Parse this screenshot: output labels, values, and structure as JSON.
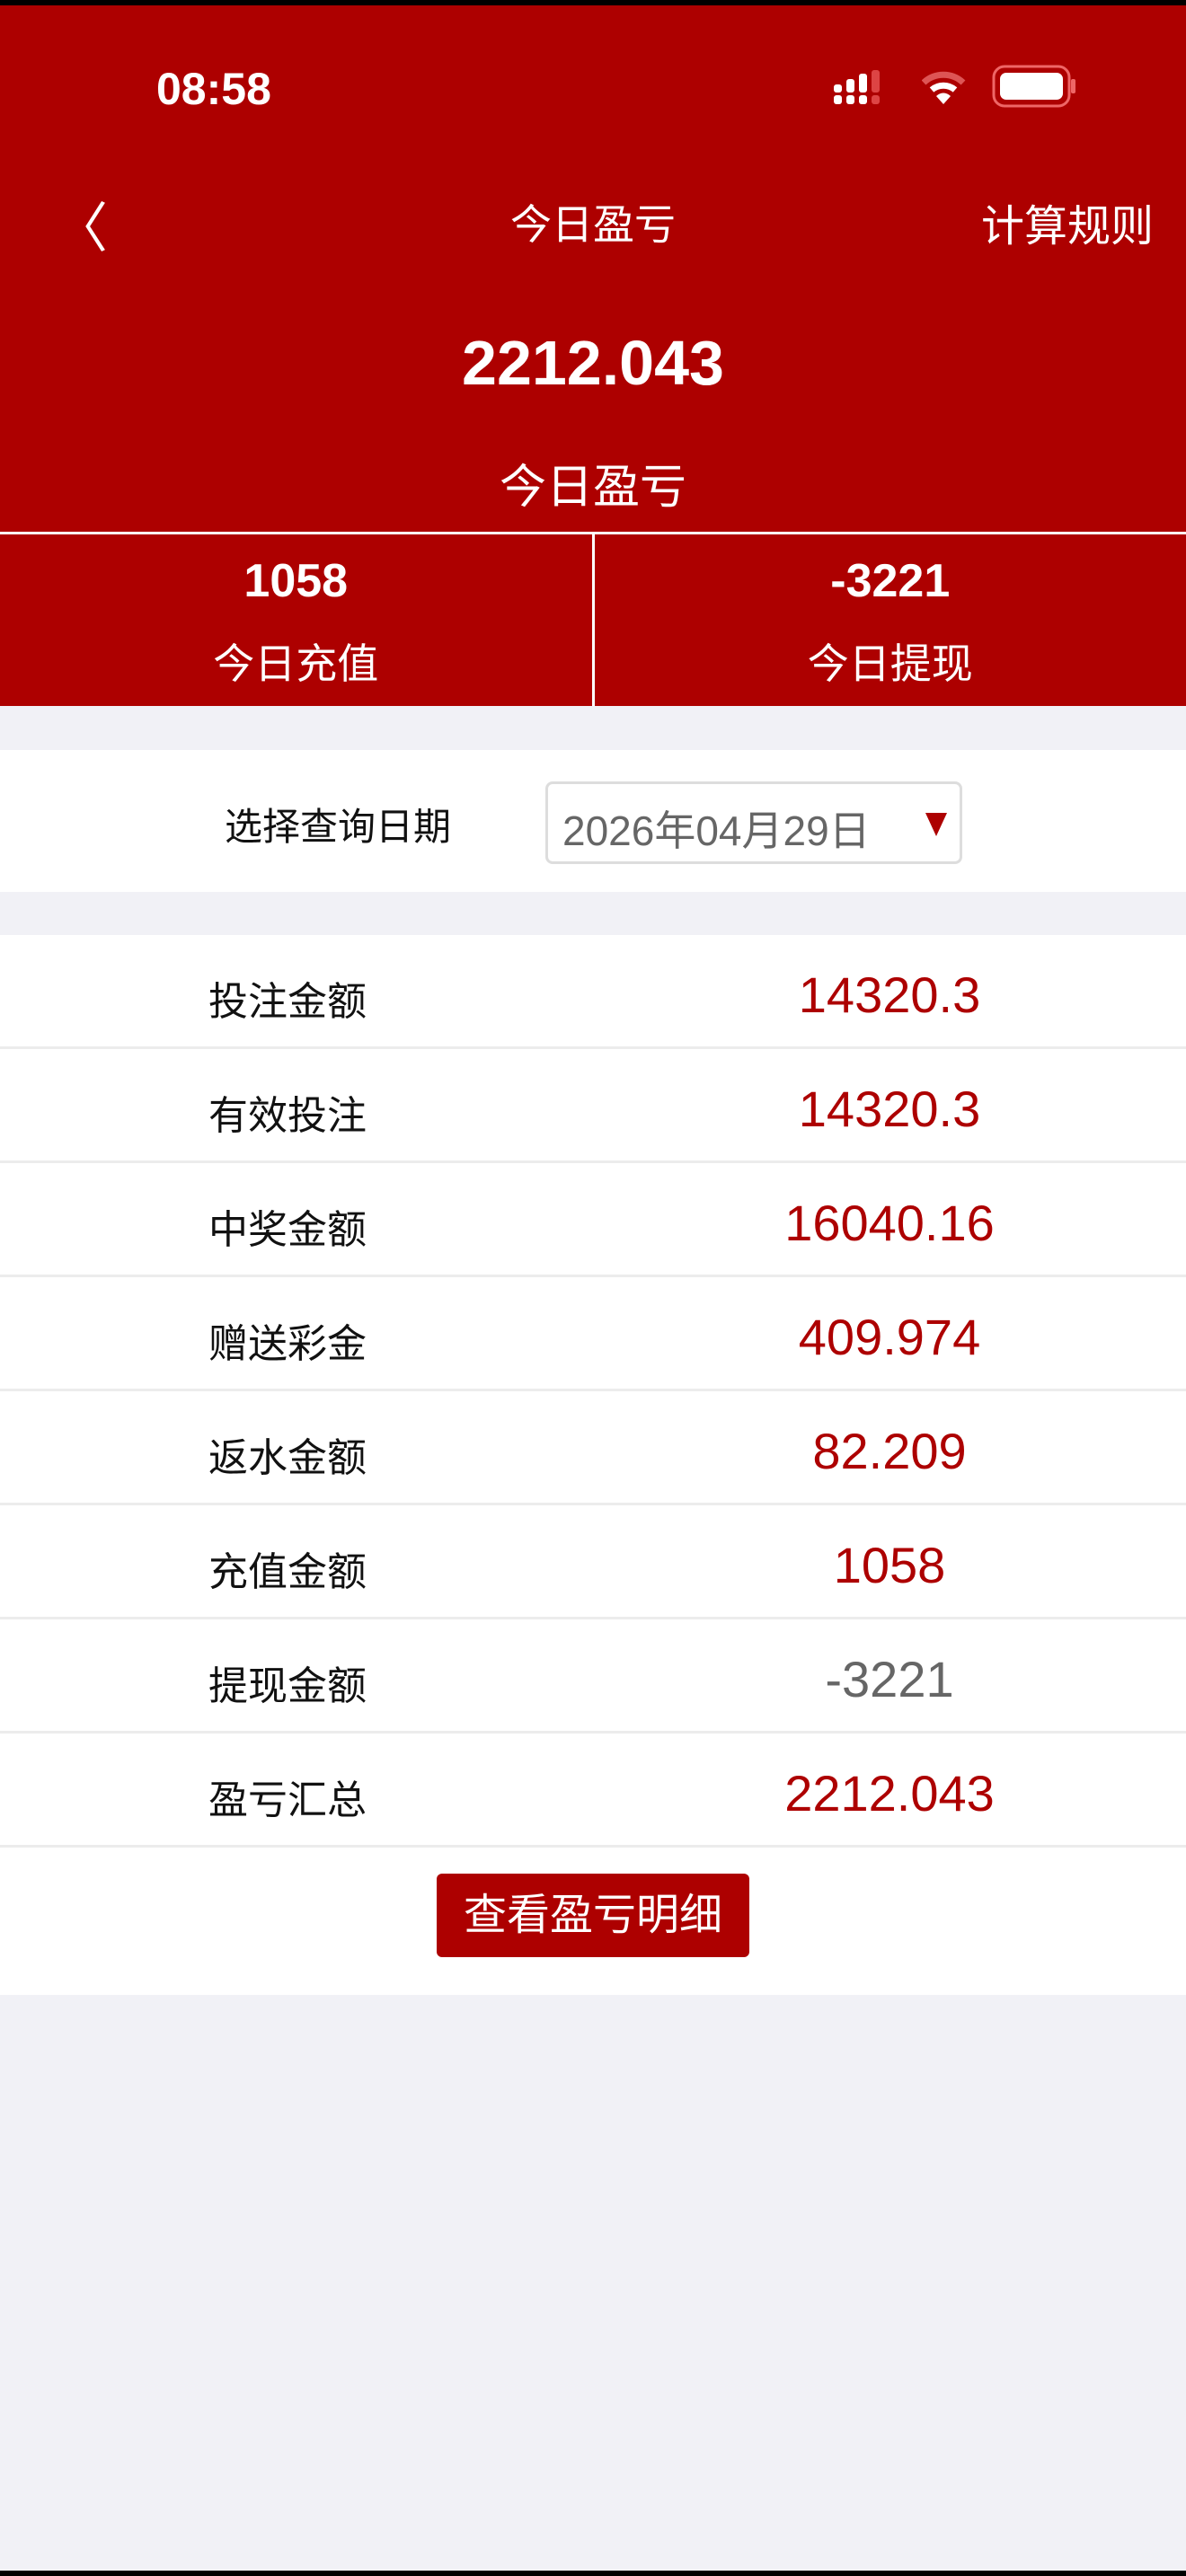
{
  "status_bar": {
    "time": "08:58"
  },
  "nav": {
    "title": "今日盈亏",
    "right_label": "计算规则"
  },
  "summary": {
    "value": "2212.043",
    "label": "今日盈亏"
  },
  "stats": [
    {
      "value": "1058",
      "label": "今日充值"
    },
    {
      "value": "-3221",
      "label": "今日提现"
    }
  ],
  "date_filter": {
    "label": "选择查询日期",
    "value": "2026年04月29日"
  },
  "rows": [
    {
      "label": "投注金额",
      "value": "14320.3"
    },
    {
      "label": "有效投注",
      "value": "14320.3"
    },
    {
      "label": "中奖金额",
      "value": "16040.16"
    },
    {
      "label": "赠送彩金",
      "value": "409.974"
    },
    {
      "label": "返水金额",
      "value": "82.209"
    },
    {
      "label": "充值金额",
      "value": "1058"
    },
    {
      "label": "提现金额",
      "value": "-3221"
    },
    {
      "label": "盈亏汇总",
      "value": "2212.043"
    }
  ],
  "detail_button": "查看盈亏明细",
  "colors": {
    "brand": "#ad0000",
    "negative": "#666666"
  }
}
